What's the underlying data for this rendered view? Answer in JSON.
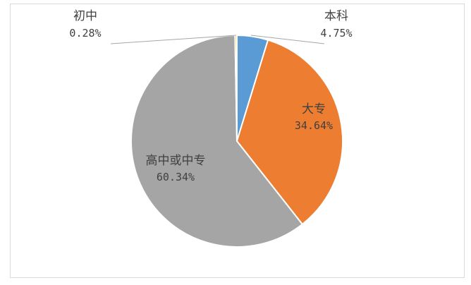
{
  "chart_data": {
    "type": "pie",
    "title": "",
    "slices": [
      {
        "name": "本科",
        "value": 4.75,
        "label": "4.75%",
        "color": "#5b9bd5"
      },
      {
        "name": "大专",
        "value": 34.64,
        "label": "34.64%",
        "color": "#ed7d31"
      },
      {
        "name": "高中或中专",
        "value": 60.34,
        "label": "60.34%",
        "color": "#a5a5a5"
      },
      {
        "name": "初中",
        "value": 0.28,
        "label": "0.28%",
        "color": "#ffc000"
      }
    ],
    "start_angle_deg": 0,
    "direction": "clockwise",
    "legend": "none",
    "data_labels": "name-and-percent"
  }
}
